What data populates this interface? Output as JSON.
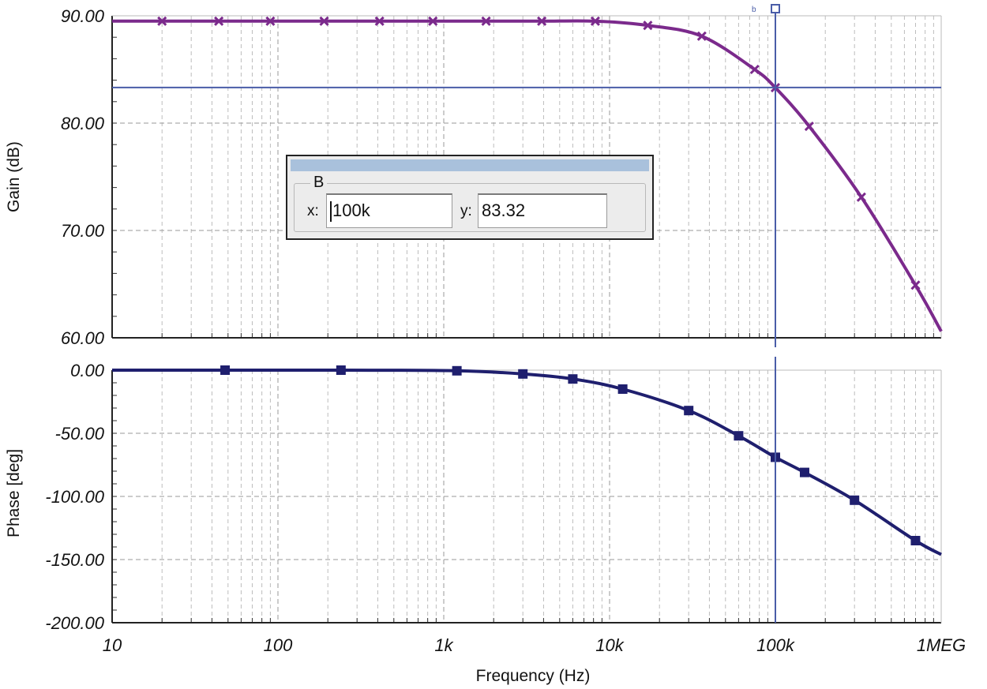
{
  "chart_data": [
    {
      "type": "line",
      "name": "gain-plot",
      "ylabel": "Gain (dB)",
      "xscale": "log",
      "xlim": [
        10,
        1000000
      ],
      "ylim": [
        60,
        90
      ],
      "yticks": [
        "90.00",
        "80.00",
        "70.00",
        "60.00"
      ],
      "grid": true,
      "series": [
        {
          "color": "#7b2a8c",
          "marker": "x",
          "x": [
            10,
            20,
            44,
            90,
            190,
            410,
            860,
            1800,
            3900,
            8200,
            17000,
            36000,
            75000,
            100000,
            160000,
            330000,
            700000,
            1000000
          ],
          "y": [
            89.5,
            89.5,
            89.5,
            89.5,
            89.5,
            89.5,
            89.5,
            89.5,
            89.5,
            89.5,
            89.1,
            88.1,
            85.0,
            83.3,
            79.7,
            73.1,
            64.9,
            60.6
          ]
        }
      ]
    },
    {
      "type": "line",
      "name": "phase-plot",
      "ylabel": "Phase [deg]",
      "xlabel": "Frequency (Hz)",
      "xscale": "log",
      "xlim": [
        10,
        1000000
      ],
      "ylim": [
        -200,
        0
      ],
      "yticks": [
        "0.00",
        "-50.00",
        "-100.00",
        "-150.00",
        "-200.00"
      ],
      "xticks": [
        "10",
        "100",
        "1k",
        "10k",
        "100k",
        "1MEG"
      ],
      "grid": true,
      "series": [
        {
          "color": "#1f1f6e",
          "marker": "square",
          "x": [
            10,
            48,
            240,
            1200,
            3000,
            6000,
            12000,
            30000,
            60000,
            100000,
            150000,
            300000,
            700000,
            1000000
          ],
          "y": [
            0,
            0,
            0,
            -0.5,
            -3,
            -7,
            -15,
            -32,
            -52,
            -69,
            -81,
            -103,
            -135,
            -146
          ]
        }
      ]
    }
  ],
  "cursor": {
    "x": 100000,
    "y": 83.32,
    "dialog": {
      "group": "B",
      "x_label": "x:",
      "y_label": "y:",
      "x_value": "100k",
      "y_value": "83.32"
    },
    "marker_label": "b",
    "line_color": "#4a5da8"
  }
}
